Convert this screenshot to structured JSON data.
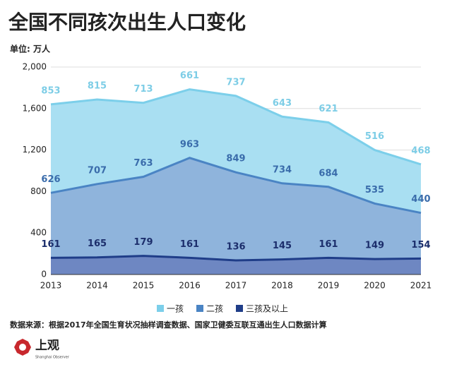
{
  "chart_data": {
    "type": "stacked_area",
    "title": "全国不同孩次出生人口变化",
    "unit_label": "单位: 万人",
    "source": "数据来源：根据2017年全国生育状况抽样调查数据、国家卫健委互联互通出生人口数据计算",
    "brand": "上观",
    "brand_sub": "Shanghai Observer",
    "categories": [
      "2013",
      "2014",
      "2015",
      "2016",
      "2017",
      "2018",
      "2019",
      "2020",
      "2021"
    ],
    "series": [
      {
        "name": "一孩",
        "color": "#a9dff2",
        "line_color": "#7ccfea",
        "label_color": "#7dcde6",
        "values": [
          853,
          815,
          713,
          661,
          737,
          643,
          621,
          516,
          468
        ]
      },
      {
        "name": "二孩",
        "color": "#8fb4dc",
        "line_color": "#4a84c4",
        "label_color": "#3a6cab",
        "values": [
          626,
          707,
          763,
          963,
          849,
          734,
          684,
          535,
          440
        ]
      },
      {
        "name": "三孩及以上",
        "color": "#6e87c2",
        "line_color": "#1f3d88",
        "label_color": "#1c2e6c",
        "values": [
          161,
          165,
          179,
          161,
          136,
          145,
          161,
          149,
          154
        ]
      }
    ],
    "ylim": [
      0,
      2000
    ],
    "yticks": [
      0,
      400,
      800,
      {
        "value": 1200,
        "label": "1,200"
      },
      {
        "value": 1600,
        "label": "1,600"
      },
      {
        "value": 2000,
        "label": "2,000"
      }
    ],
    "grid": true
  }
}
